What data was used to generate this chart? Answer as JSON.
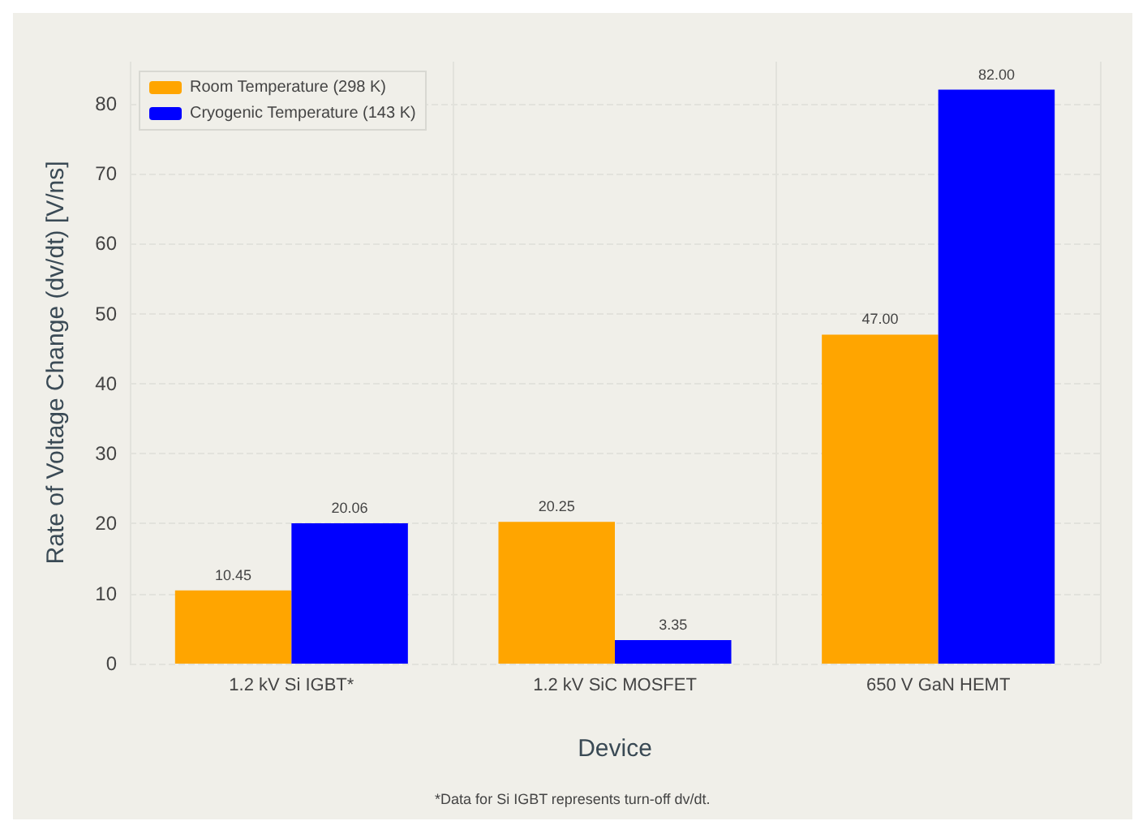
{
  "chart_data": {
    "type": "bar",
    "xlabel": "Device",
    "ylabel": "Rate of Voltage Change (dv/dt) [V/ns]",
    "categories": [
      "1.2 kV Si IGBT*",
      "1.2 kV SiC MOSFET",
      "650 V GaN HEMT"
    ],
    "series": [
      {
        "name": "Room Temperature (298 K)",
        "color": "#ffa500",
        "values": [
          10.45,
          20.25,
          47.0
        ],
        "value_labels": [
          "10.45",
          "20.25",
          "47.00"
        ]
      },
      {
        "name": "Cryogenic Temperature (143 K)",
        "color": "#0000ff",
        "values": [
          20.06,
          3.35,
          82.0
        ],
        "value_labels": [
          "20.06",
          "3.35",
          "82.00"
        ]
      }
    ],
    "ylim": [
      0,
      86
    ],
    "yticks": [
      0,
      10,
      20,
      30,
      40,
      50,
      60,
      70,
      80
    ],
    "grid": true,
    "legend": "top left",
    "annotations": [
      "*Data for Si IGBT represents turn-off dv/dt."
    ]
  }
}
